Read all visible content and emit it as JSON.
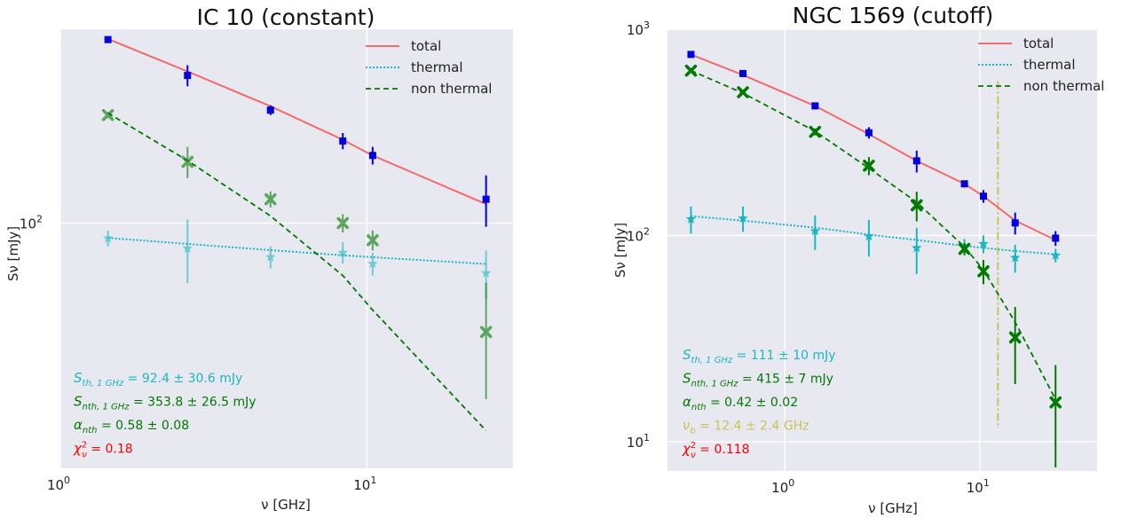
{
  "colors": {
    "plot_bg": "#e8e8f0",
    "grid": "#ffffff",
    "total": "#f26b6b",
    "thermal": "#1ab7c2",
    "nonthermal": "#007a00",
    "total_points": "#0000e0",
    "cutoff": "#c9c35a",
    "chi": "#ff0000"
  },
  "chart_data": [
    {
      "type": "scatter",
      "title": "IC 10 (constant)",
      "xlabel": "ν [GHz]",
      "ylabel": "Sν [mJy]",
      "xscale": "log",
      "yscale": "log",
      "xlim": [
        1.0,
        30
      ],
      "ylim": [
        26,
        290
      ],
      "xticks": [
        {
          "value": 1,
          "base": "10",
          "exp": "0"
        },
        {
          "value": 10,
          "base": "10",
          "exp": "1"
        }
      ],
      "yticks": [
        {
          "value": 100,
          "base": "10",
          "exp": "2"
        }
      ],
      "legend": {
        "position": "top-right",
        "entries": [
          "total",
          "thermal",
          "non thermal"
        ]
      },
      "series": [
        {
          "name": "total",
          "kind": "line",
          "x": [
            1.43,
            2.6,
            4.85,
            8.35,
            10.45,
            24.5
          ],
          "y": [
            275,
            230,
            190,
            158,
            145,
            111
          ]
        },
        {
          "name": "thermal",
          "kind": "line",
          "x": [
            1.43,
            2.6,
            4.85,
            8.35,
            10.45,
            24.5
          ],
          "y": [
            92.2,
            89.2,
            86.2,
            83.8,
            82.9,
            79.9
          ]
        },
        {
          "name": "non thermal",
          "kind": "line",
          "x": [
            1.43,
            2.6,
            4.85,
            8.35,
            10.45,
            24.5
          ],
          "y": [
            183,
            141,
            104,
            75,
            62,
            32
          ]
        },
        {
          "name": "total data",
          "kind": "points",
          "marker": "square",
          "x": [
            1.43,
            2.6,
            4.85,
            8.35,
            10.45,
            24.5
          ],
          "y": [
            274,
            225,
            186,
            157,
            145,
            114
          ],
          "yerr": [
            3,
            13,
            5,
            7,
            7,
            16
          ]
        },
        {
          "name": "thermal data",
          "kind": "points",
          "marker": "star",
          "x": [
            1.43,
            2.6,
            4.85,
            8.35,
            10.45,
            24.5
          ],
          "y": [
            92,
            87,
            83,
            85,
            80,
            76
          ],
          "yerr": [
            4,
            15,
            5,
            5,
            5,
            10
          ]
        },
        {
          "name": "non thermal data",
          "kind": "points",
          "marker": "cross",
          "x": [
            1.43,
            2.6,
            4.85,
            8.35,
            10.45,
            24.5
          ],
          "y": [
            181,
            140,
            114,
            100,
            91,
            55
          ],
          "yerr": [
            3,
            12,
            5,
            5,
            5,
            17
          ]
        }
      ],
      "annotations": [
        {
          "sym": "S",
          "sub": "th, 1 GHz",
          "text": " = 92.4 ± 30.6 mJy",
          "color": "thermal"
        },
        {
          "sym": "S",
          "sub": "nth, 1 GHz",
          "text": " = 353.8 ± 26.5 mJy",
          "color": "nonthermal"
        },
        {
          "sym": "α",
          "sub": "nth",
          "text": " = 0.58 ± 0.08",
          "color": "nonthermal"
        },
        {
          "sym": "χ",
          "sub": "ν",
          "sup": "2",
          "text": " = 0.18",
          "color": "chi"
        }
      ]
    },
    {
      "type": "scatter",
      "title": "NGC 1569 (cutoff)",
      "xlabel": "ν [GHz]",
      "ylabel": "Sν [mJy]",
      "xscale": "log",
      "yscale": "log",
      "xlim": [
        0.25,
        40
      ],
      "ylim": [
        7.2,
        1000
      ],
      "xticks": [
        {
          "value": 1,
          "base": "10",
          "exp": "0"
        },
        {
          "value": 10,
          "base": "10",
          "exp": "1"
        }
      ],
      "yticks": [
        {
          "value": 10,
          "base": "10",
          "exp": "1"
        },
        {
          "value": 100,
          "base": "10",
          "exp": "2"
        },
        {
          "value": 1000,
          "base": "10",
          "exp": "3"
        }
      ],
      "legend": {
        "position": "top-right",
        "entries": [
          "total",
          "thermal",
          "non thermal"
        ]
      },
      "cutoff_frequency_ghz": 12.4,
      "series": [
        {
          "name": "total",
          "kind": "line",
          "x": [
            0.33,
            0.61,
            1.43,
            2.7,
            4.75,
            8.35,
            10.45,
            15.2,
            24.5
          ],
          "y": [
            755,
            600,
            425,
            310,
            230,
            178,
            155,
            118,
            95
          ]
        },
        {
          "name": "thermal",
          "kind": "line",
          "x": [
            0.33,
            0.61,
            1.43,
            2.7,
            4.75,
            8.35,
            10.45,
            15.2,
            24.5
          ],
          "y": [
            124,
            118,
            109,
            101,
            95,
            89,
            87,
            84,
            81
          ]
        },
        {
          "name": "non thermal",
          "kind": "line",
          "x": [
            0.33,
            0.61,
            1.43,
            2.7,
            4.75,
            8.35,
            10.45,
            15.2,
            24.5
          ],
          "y": [
            630,
            490,
            320,
            212,
            145,
            88,
            68,
            38,
            16
          ]
        },
        {
          "name": "total data",
          "kind": "points",
          "marker": "square",
          "x": [
            0.33,
            0.61,
            1.43,
            2.7,
            4.75,
            8.35,
            10.45,
            15.2,
            24.5
          ],
          "y": [
            755,
            610,
            425,
            315,
            230,
            178,
            155,
            115,
            97
          ],
          "yerr": [
            10,
            10,
            12,
            20,
            28,
            6,
            11,
            14,
            8
          ]
        },
        {
          "name": "thermal data",
          "kind": "points",
          "marker": "star",
          "x": [
            0.33,
            0.61,
            1.43,
            2.7,
            4.75,
            8.35,
            10.45,
            15.2,
            24.5
          ],
          "y": [
            120,
            121,
            105,
            99,
            87,
            89,
            91,
            78,
            80
          ],
          "yerr": [
            18,
            17,
            20,
            20,
            22,
            7,
            9,
            12,
            6
          ]
        },
        {
          "name": "non thermal data",
          "kind": "points",
          "marker": "cross",
          "x": [
            0.33,
            0.61,
            1.43,
            2.7,
            4.75,
            8.35,
            10.45,
            15.2,
            24.5
          ],
          "y": [
            630,
            495,
            318,
            218,
            140,
            86,
            67,
            32,
            15.5
          ],
          "yerr": [
            10,
            10,
            12,
            22,
            23,
            6,
            9,
            13,
            8
          ]
        }
      ],
      "annotations": [
        {
          "sym": "S",
          "sub": "th, 1 GHz",
          "text": " = 111 ± 10 mJy",
          "color": "thermal"
        },
        {
          "sym": "S",
          "sub": "nth, 1 GHz",
          "text": " = 415 ± 7 mJy",
          "color": "nonthermal"
        },
        {
          "sym": "α",
          "sub": "nth",
          "text": " = 0.42 ± 0.02",
          "color": "nonthermal"
        },
        {
          "sym": "ν",
          "sub": "b",
          "text": " = 12.4 ± 2.4 GHz",
          "color": "cutoff"
        },
        {
          "sym": "χ",
          "sub": "ν",
          "sup": "2",
          "text": " = 0.118",
          "color": "chi"
        }
      ]
    }
  ]
}
